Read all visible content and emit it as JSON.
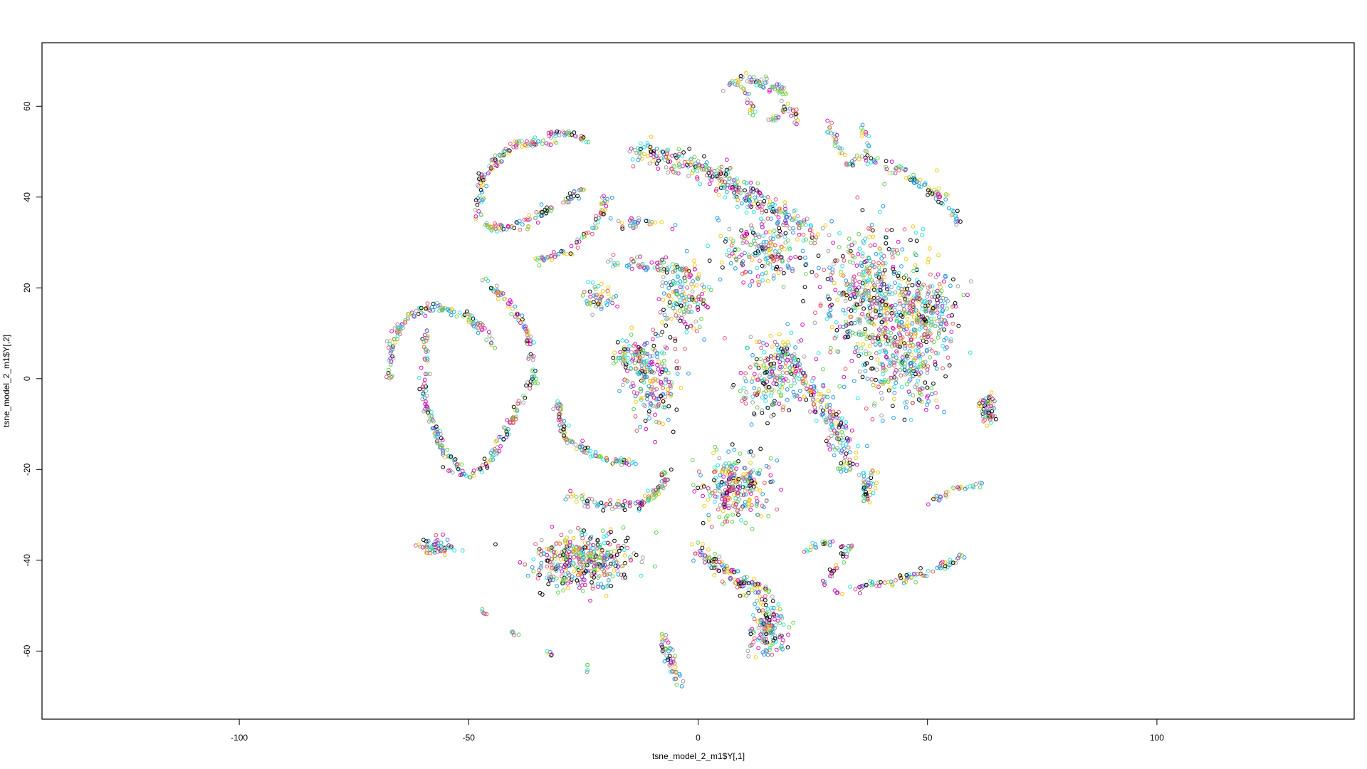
{
  "chart_data": {
    "type": "scatter",
    "title": "",
    "xlabel": "tsne_model_2_m1$Y[,1]",
    "ylabel": "tsne_model_2_m1$Y[,2]",
    "xlim": [
      -143,
      143
    ],
    "ylim": [
      -75,
      74
    ],
    "xticks": [
      -100,
      -50,
      0,
      50,
      100
    ],
    "yticks": [
      -60,
      -40,
      -20,
      0,
      20,
      40,
      60
    ],
    "xtick_labels": [
      "-100",
      "-50",
      "0",
      "50",
      "100"
    ],
    "ytick_labels": [
      "-60",
      "-40",
      "-20",
      "0",
      "20",
      "40",
      "60"
    ],
    "grid": false,
    "legend": "none",
    "marker": "open-circle",
    "palette": [
      "#000000",
      "#df536b",
      "#61d04f",
      "#2297e6",
      "#28e2e5",
      "#cd0bbc",
      "#f5c710",
      "#9e9e9e"
    ],
    "clusters": [
      {
        "shape": "line",
        "pts": [
          [
            -13,
            50
          ],
          [
            2,
            46
          ],
          [
            15,
            38
          ],
          [
            25,
            31
          ]
        ],
        "width": 3.2,
        "n": 320
      },
      {
        "shape": "blob",
        "center": [
          38,
          18
        ],
        "spread": [
          10,
          13
        ],
        "n": 520
      },
      {
        "shape": "blob",
        "center": [
          50,
          15
        ],
        "spread": [
          6,
          7
        ],
        "n": 220
      },
      {
        "shape": "blob",
        "center": [
          45,
          2
        ],
        "spread": [
          7,
          9
        ],
        "n": 220
      },
      {
        "shape": "blob",
        "center": [
          14,
          28
        ],
        "spread": [
          8,
          6
        ],
        "n": 200
      },
      {
        "shape": "line",
        "pts": [
          [
            18,
            8
          ],
          [
            24,
            -2
          ],
          [
            30,
            -10
          ],
          [
            33,
            -20
          ]
        ],
        "width": 2.8,
        "n": 240
      },
      {
        "shape": "blob",
        "center": [
          15,
          0
        ],
        "spread": [
          5,
          7
        ],
        "n": 160
      },
      {
        "shape": "blob",
        "center": [
          -10,
          0
        ],
        "spread": [
          5,
          8
        ],
        "n": 200
      },
      {
        "shape": "blob",
        "center": [
          -3,
          18
        ],
        "spread": [
          5,
          6
        ],
        "n": 150
      },
      {
        "shape": "blob",
        "center": [
          -15,
          5
        ],
        "spread": [
          4,
          3
        ],
        "n": 60
      },
      {
        "shape": "line",
        "pts": [
          [
            -19,
            26
          ],
          [
            -10,
            25
          ],
          [
            -2,
            24
          ]
        ],
        "width": 1.5,
        "n": 60
      },
      {
        "shape": "blob",
        "center": [
          -22,
          18
        ],
        "spread": [
          3,
          3
        ],
        "n": 50
      },
      {
        "shape": "blob",
        "center": [
          -13,
          34
        ],
        "spread": [
          4,
          1.2
        ],
        "n": 30
      },
      {
        "shape": "blob",
        "center": [
          -25,
          -40
        ],
        "spread": [
          9,
          5
        ],
        "n": 380
      },
      {
        "shape": "blob",
        "center": [
          8,
          -24
        ],
        "spread": [
          6,
          6
        ],
        "n": 260
      },
      {
        "shape": "line",
        "pts": [
          [
            0,
            -37
          ],
          [
            5,
            -42
          ],
          [
            10,
            -45
          ],
          [
            15,
            -48
          ]
        ],
        "width": 2.2,
        "n": 120
      },
      {
        "shape": "blob",
        "center": [
          15,
          -55
        ],
        "spread": [
          3.5,
          5
        ],
        "n": 140
      },
      {
        "shape": "line",
        "pts": [
          [
            -8,
            -56
          ],
          [
            -6,
            -62
          ],
          [
            -4,
            -67
          ]
        ],
        "width": 1.5,
        "n": 50
      },
      {
        "shape": "line",
        "pts": [
          [
            -28,
            -26
          ],
          [
            -20,
            -28
          ],
          [
            -13,
            -28
          ],
          [
            -8,
            -24
          ],
          [
            -7,
            -20
          ]
        ],
        "width": 1.2,
        "n": 110
      },
      {
        "shape": "line",
        "pts": [
          [
            -31,
            -5
          ],
          [
            -29,
            -13
          ],
          [
            -22,
            -17
          ],
          [
            -14,
            -19
          ]
        ],
        "width": 1.0,
        "n": 100
      },
      {
        "shape": "line",
        "pts": [
          [
            -59,
            11
          ],
          [
            -60,
            -3
          ],
          [
            -56,
            -15
          ],
          [
            -52,
            -20
          ]
        ],
        "width": 1.0,
        "n": 110
      },
      {
        "shape": "line",
        "pts": [
          [
            -55,
            -20
          ],
          [
            -50,
            -22
          ],
          [
            -45,
            -17
          ],
          [
            -40,
            -8
          ],
          [
            -36,
            0
          ],
          [
            -37,
            10
          ],
          [
            -42,
            18
          ],
          [
            -47,
            22
          ]
        ],
        "width": 1.0,
        "n": 170
      },
      {
        "shape": "line",
        "pts": [
          [
            -67,
            -1
          ],
          [
            -67,
            8
          ],
          [
            -63,
            14
          ],
          [
            -57,
            16
          ],
          [
            -50,
            14
          ],
          [
            -44,
            7
          ]
        ],
        "width": 1.1,
        "n": 130
      },
      {
        "shape": "line",
        "pts": [
          [
            -31,
            52
          ],
          [
            -40,
            52
          ],
          [
            -47,
            45
          ],
          [
            -48,
            35
          ],
          [
            -44,
            33
          ],
          [
            -38,
            34
          ],
          [
            -31,
            38
          ],
          [
            -25,
            42
          ]
        ],
        "width": 1.3,
        "n": 190
      },
      {
        "shape": "line",
        "pts": [
          [
            -35,
            26
          ],
          [
            -28,
            28
          ],
          [
            -22,
            34
          ],
          [
            -20,
            40
          ]
        ],
        "width": 1.0,
        "n": 70
      },
      {
        "shape": "line",
        "pts": [
          [
            -33,
            54
          ],
          [
            -28,
            54
          ],
          [
            -23,
            52
          ]
        ],
        "width": 0.8,
        "n": 35
      },
      {
        "shape": "line",
        "pts": [
          [
            5,
            64
          ],
          [
            10,
            66
          ],
          [
            15,
            65
          ],
          [
            20,
            62
          ]
        ],
        "width": 1.5,
        "n": 60
      },
      {
        "shape": "line",
        "pts": [
          [
            16,
            57
          ],
          [
            20,
            60
          ],
          [
            22,
            57
          ]
        ],
        "width": 1.0,
        "n": 30
      },
      {
        "shape": "line",
        "pts": [
          [
            28,
            58
          ],
          [
            30,
            52
          ],
          [
            33,
            47
          ],
          [
            37,
            50
          ],
          [
            36,
            56
          ]
        ],
        "width": 1.0,
        "n": 50
      },
      {
        "shape": "line",
        "pts": [
          [
            37,
            48
          ],
          [
            44,
            46
          ],
          [
            50,
            42
          ],
          [
            55,
            38
          ],
          [
            57,
            34
          ]
        ],
        "width": 1.5,
        "n": 90
      },
      {
        "shape": "blob",
        "center": [
          63,
          -7
        ],
        "spread": [
          1.5,
          3.5
        ],
        "n": 60
      },
      {
        "shape": "blob",
        "center": [
          37,
          -24
        ],
        "spread": [
          1.5,
          3.5
        ],
        "n": 45
      },
      {
        "shape": "line",
        "pts": [
          [
            49,
            -28
          ],
          [
            53,
            -26
          ],
          [
            57,
            -24
          ],
          [
            62,
            -23
          ]
        ],
        "width": 0.8,
        "n": 30
      },
      {
        "shape": "line",
        "pts": [
          [
            23,
            -38
          ],
          [
            28,
            -36
          ],
          [
            33,
            -37
          ],
          [
            30,
            -42
          ],
          [
            27,
            -45
          ]
        ],
        "width": 1.0,
        "n": 50
      },
      {
        "shape": "line",
        "pts": [
          [
            30,
            -47
          ],
          [
            40,
            -45
          ],
          [
            50,
            -43
          ],
          [
            58,
            -39
          ]
        ],
        "width": 1.2,
        "n": 80
      },
      {
        "shape": "blob",
        "center": [
          -57,
          -37
        ],
        "spread": [
          3,
          1.5
        ],
        "n": 60
      },
      {
        "shape": "line",
        "pts": [
          [
            -36,
            -43
          ],
          [
            -32,
            -44
          ],
          [
            -28,
            -45
          ]
        ],
        "width": 0.8,
        "n": 20
      },
      {
        "shape": "line",
        "pts": [
          [
            -47,
            -51
          ],
          [
            -46,
            -52
          ]
        ],
        "width": 0.5,
        "n": 6
      },
      {
        "shape": "line",
        "pts": [
          [
            -41,
            -56
          ],
          [
            -39,
            -57
          ]
        ],
        "width": 0.5,
        "n": 6
      },
      {
        "shape": "line",
        "pts": [
          [
            -33,
            -60
          ],
          [
            -32,
            -61
          ]
        ],
        "width": 0.5,
        "n": 5
      },
      {
        "shape": "line",
        "pts": [
          [
            -24,
            -63
          ],
          [
            -24,
            -65
          ]
        ],
        "width": 0.5,
        "n": 5
      },
      {
        "shape": "line",
        "pts": [
          [
            9,
            65
          ],
          [
            11,
            62
          ],
          [
            12,
            58
          ]
        ],
        "width": 0.8,
        "n": 20
      }
    ]
  }
}
